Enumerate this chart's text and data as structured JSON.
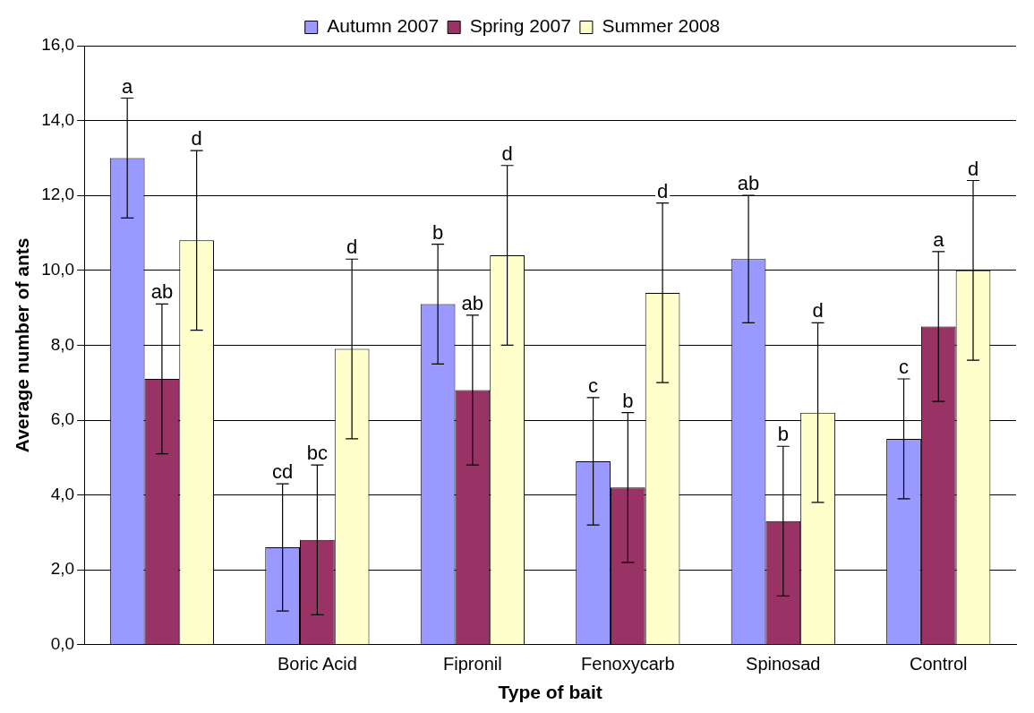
{
  "chart_data": {
    "type": "bar",
    "xlabel": "Type of bait",
    "ylabel": "Average number of ants",
    "categories": [
      null,
      "Boric Acid",
      "Fipronil",
      "Fenoxycarb",
      "Spinosad",
      "Control"
    ],
    "series": [
      {
        "name": "Autumn 2007",
        "color": "#9999ff",
        "values": [
          13.0,
          2.6,
          9.1,
          4.9,
          10.3,
          5.5
        ],
        "errors": [
          1.6,
          1.7,
          1.6,
          1.7,
          1.7,
          1.6
        ]
      },
      {
        "name": "Spring 2007",
        "color": "#993366",
        "values": [
          7.1,
          2.8,
          6.8,
          4.2,
          3.3,
          8.5
        ],
        "errors": [
          2.0,
          2.0,
          2.0,
          2.0,
          2.0,
          2.0
        ]
      },
      {
        "name": "Summer 2008",
        "color": "#ffffcc",
        "values": [
          10.8,
          7.9,
          10.4,
          9.4,
          6.2,
          10.0
        ],
        "errors": [
          2.4,
          2.4,
          2.4,
          2.4,
          2.4,
          2.4
        ]
      }
    ],
    "annotations": [
      "a",
      "ab",
      "d",
      "cd",
      "bc",
      "d",
      "b",
      "ab",
      "d",
      "c",
      "b",
      "d",
      "ab",
      "b",
      "d",
      "c",
      "a",
      "d"
    ],
    "ylim": [
      0,
      16
    ],
    "yticks": [
      {
        "value": 0,
        "label": "0,0"
      },
      {
        "value": 2,
        "label": "2,0"
      },
      {
        "value": 4,
        "label": "4,0"
      },
      {
        "value": 6,
        "label": "6,0"
      },
      {
        "value": 8,
        "label": "8,0"
      },
      {
        "value": 10,
        "label": "10,0"
      },
      {
        "value": 12,
        "label": "12,0"
      },
      {
        "value": 14,
        "label": "14,0"
      },
      {
        "value": 16,
        "label": "16,0"
      }
    ],
    "grid": "y",
    "legend": "top"
  }
}
